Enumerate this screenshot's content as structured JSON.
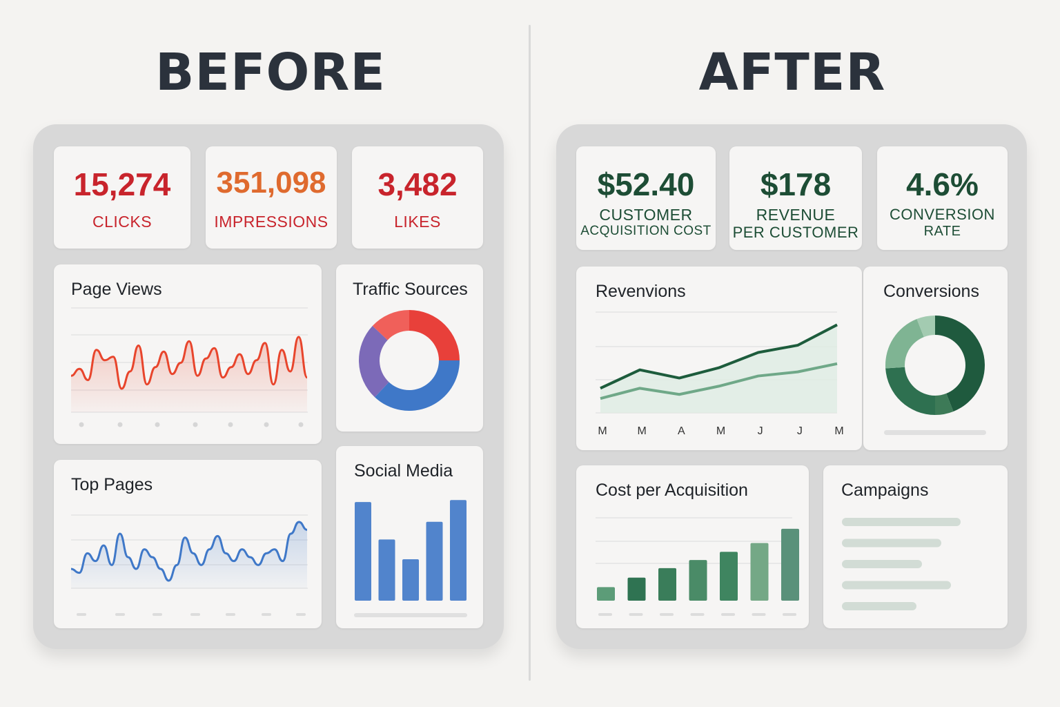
{
  "before": {
    "heading": "BEFORE",
    "stats": [
      {
        "value": "15,274",
        "label": "CLICKS",
        "value_color": "#c8242c",
        "label_color": "#c8242c"
      },
      {
        "value": "351,098",
        "label": "IMPRESSIONS",
        "value_color": "#df6a2e",
        "label_color": "#c8242c"
      },
      {
        "value": "3,482",
        "label": "LIKES",
        "value_color": "#c8242c",
        "label_color": "#c8242c"
      }
    ]
  },
  "after": {
    "heading": "AFTER",
    "stats": [
      {
        "value": "$52.40",
        "label_line1": "CUSTOMER",
        "label_line2": "ACQUISITION COST",
        "value_color": "#1d4d35",
        "label_color": "#1d4d35"
      },
      {
        "value": "$178",
        "label_line1": "REVENUE",
        "label_line2": "PER CUSTOMER",
        "value_color": "#1d4d35",
        "label_color": "#1d4d35"
      },
      {
        "value": "4.6%",
        "label_line1": "CONVERSION",
        "label_line2": "RATE",
        "value_color": "#1d4d35",
        "label_color": "#1d4d35"
      }
    ]
  },
  "chart_data": [
    {
      "type": "line",
      "title": "Page Views",
      "color": "#e8452c",
      "series": [
        {
          "values": [
            40,
            48,
            35,
            70,
            58,
            62,
            25,
            45,
            75,
            30,
            50,
            68,
            42,
            55,
            80,
            40,
            60,
            72,
            38,
            50,
            65,
            42,
            58,
            78,
            30,
            70,
            45,
            85,
            38
          ]
        }
      ]
    },
    {
      "type": "pie",
      "title": "Traffic Sources",
      "slices": [
        {
          "value": 25,
          "color": "#e8403a"
        },
        {
          "value": 37,
          "color": "#3f78c8"
        },
        {
          "value": 25,
          "color": "#7c6ab8"
        },
        {
          "value": 13,
          "color": "#f0605a"
        }
      ]
    },
    {
      "type": "line",
      "title": "Top Pages",
      "color": "#3f78c8",
      "series": [
        {
          "values": [
            30,
            25,
            50,
            40,
            60,
            35,
            75,
            45,
            30,
            55,
            45,
            30,
            15,
            35,
            70,
            50,
            35,
            55,
            72,
            50,
            40,
            55,
            45,
            35,
            50,
            55,
            40,
            75,
            90,
            80
          ]
        }
      ]
    },
    {
      "type": "bar",
      "title": "Social Media",
      "color": "#3f78c8",
      "values": [
        100,
        62,
        42,
        80,
        102
      ],
      "ylim": [
        0,
        105
      ]
    },
    {
      "type": "area",
      "title": "Revenvions",
      "categories": [
        "M",
        "M",
        "A",
        "M",
        "J",
        "J",
        "M"
      ],
      "series": [
        {
          "color": "#1d5c3c",
          "values": [
            20,
            38,
            30,
            40,
            55,
            62,
            82
          ]
        },
        {
          "color": "#6fa888",
          "values": [
            10,
            20,
            14,
            22,
            32,
            36,
            44
          ]
        }
      ]
    },
    {
      "type": "pie",
      "title": "Conversions",
      "slices": [
        {
          "value": 44,
          "color": "#1f5a3e"
        },
        {
          "value": 6,
          "color": "#3d7a57"
        },
        {
          "value": 24,
          "color": "#2e7050"
        },
        {
          "value": 20,
          "color": "#7fb493"
        },
        {
          "value": 6,
          "color": "#a3cbb1"
        }
      ]
    },
    {
      "type": "bar",
      "title": "Cost per Acquisition",
      "values": [
        20,
        34,
        48,
        60,
        72,
        85,
        106
      ],
      "colors": [
        "#5c9c78",
        "#2f7352",
        "#3a7d5a",
        "#4a8b67",
        "#3f8560",
        "#74a886",
        "#5a917a"
      ],
      "ylim": [
        0,
        110
      ]
    },
    {
      "type": "table",
      "title": "Campaigns",
      "rows": [
        1,
        1,
        1,
        1,
        1
      ]
    }
  ]
}
